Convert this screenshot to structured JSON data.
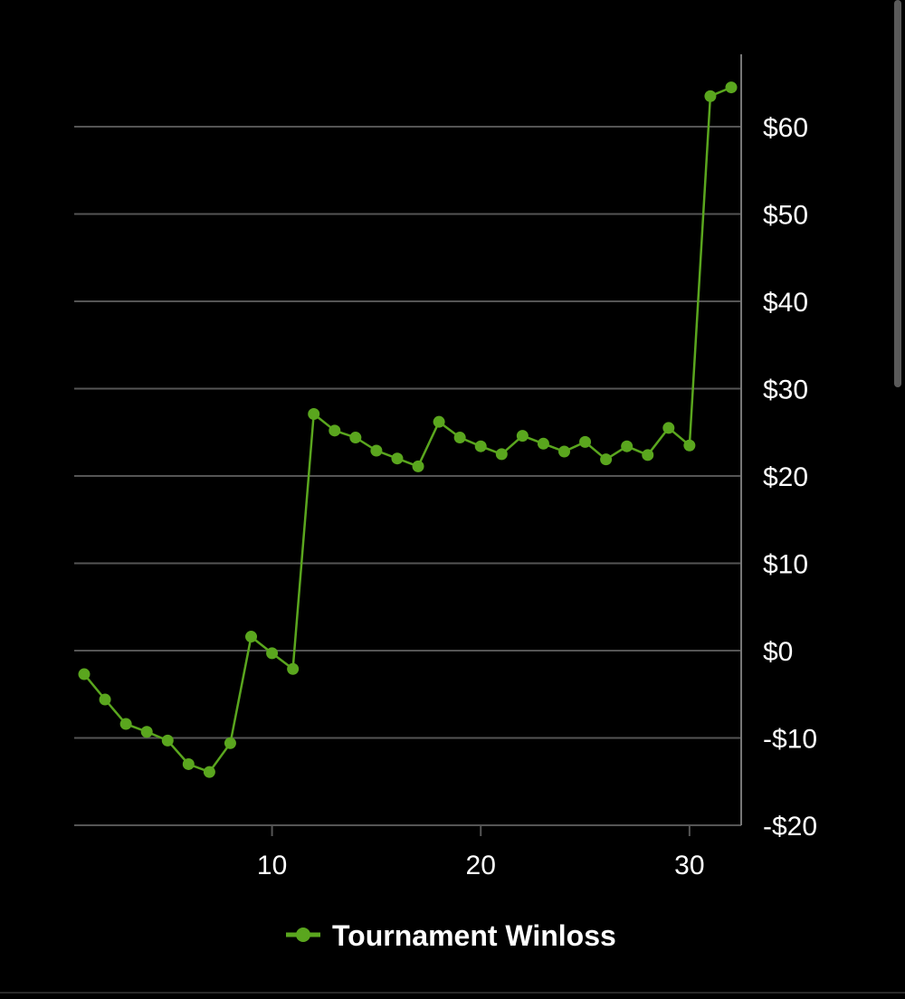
{
  "chart_data": {
    "type": "line",
    "title": "",
    "xlabel": "",
    "ylabel": "",
    "xlim": [
      1,
      32
    ],
    "ylim": [
      -20,
      68
    ],
    "x_ticks": [
      10,
      20,
      30
    ],
    "x_tick_labels": [
      "10",
      "20",
      "30"
    ],
    "y_ticks": [
      -20,
      -10,
      0,
      10,
      20,
      30,
      40,
      50,
      60
    ],
    "y_tick_labels": [
      "-$20",
      "-$10",
      "$0",
      "$10",
      "$20",
      "$30",
      "$40",
      "$50",
      "$60"
    ],
    "y_axis_position": "right",
    "grid": true,
    "legend_placement": "bottom-center",
    "series": [
      {
        "name": "Tournament Winloss",
        "color": "#5aa61e",
        "x": [
          1,
          2,
          3,
          4,
          5,
          6,
          7,
          8,
          9,
          10,
          11,
          12,
          13,
          14,
          15,
          16,
          17,
          18,
          19,
          20,
          21,
          22,
          23,
          24,
          25,
          26,
          27,
          28,
          29,
          30,
          31,
          32
        ],
        "values": [
          -2.7,
          -5.6,
          -8.4,
          -9.3,
          -10.3,
          -13,
          -13.9,
          -10.6,
          1.6,
          -0.3,
          -2.1,
          27.1,
          25.2,
          24.4,
          22.9,
          22,
          21.1,
          26.2,
          24.4,
          23.4,
          22.5,
          24.6,
          23.7,
          22.8,
          23.9,
          21.9,
          23.4,
          22.4,
          25.5,
          23.5,
          63.5,
          64.5
        ]
      }
    ]
  }
}
